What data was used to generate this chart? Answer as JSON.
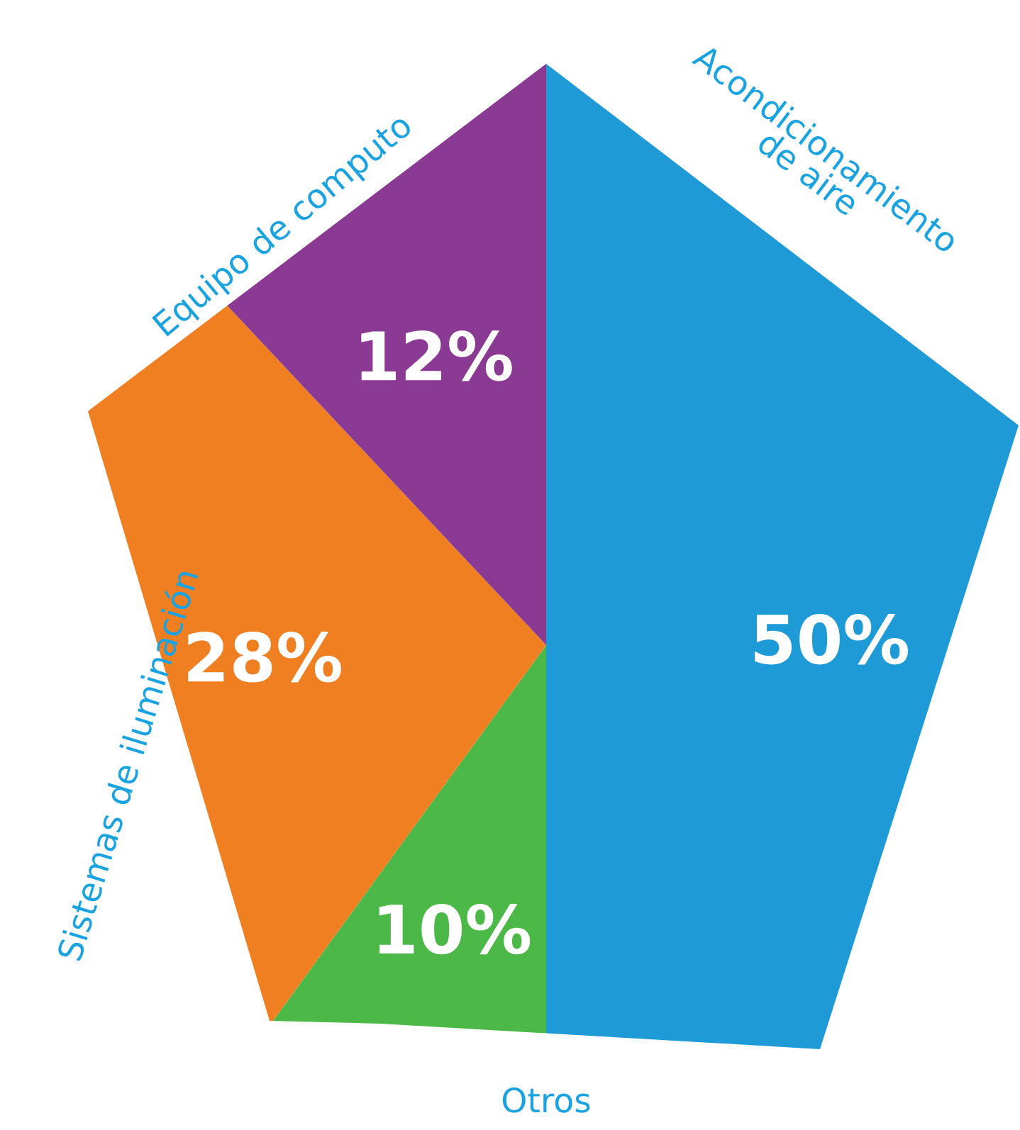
{
  "chart_data": {
    "type": "pie",
    "categories": [
      "Acondicionamiento\nde aire",
      "Otros",
      "Sistemas de iluminación",
      "Equipo de computo"
    ],
    "values": [
      50,
      10,
      28,
      12
    ],
    "value_labels": [
      "50%",
      "10%",
      "28%",
      "12%"
    ],
    "colors": [
      "#1e9ad6",
      "#4cb848",
      "#f07f22",
      "#8b3a94"
    ],
    "legend": false
  }
}
